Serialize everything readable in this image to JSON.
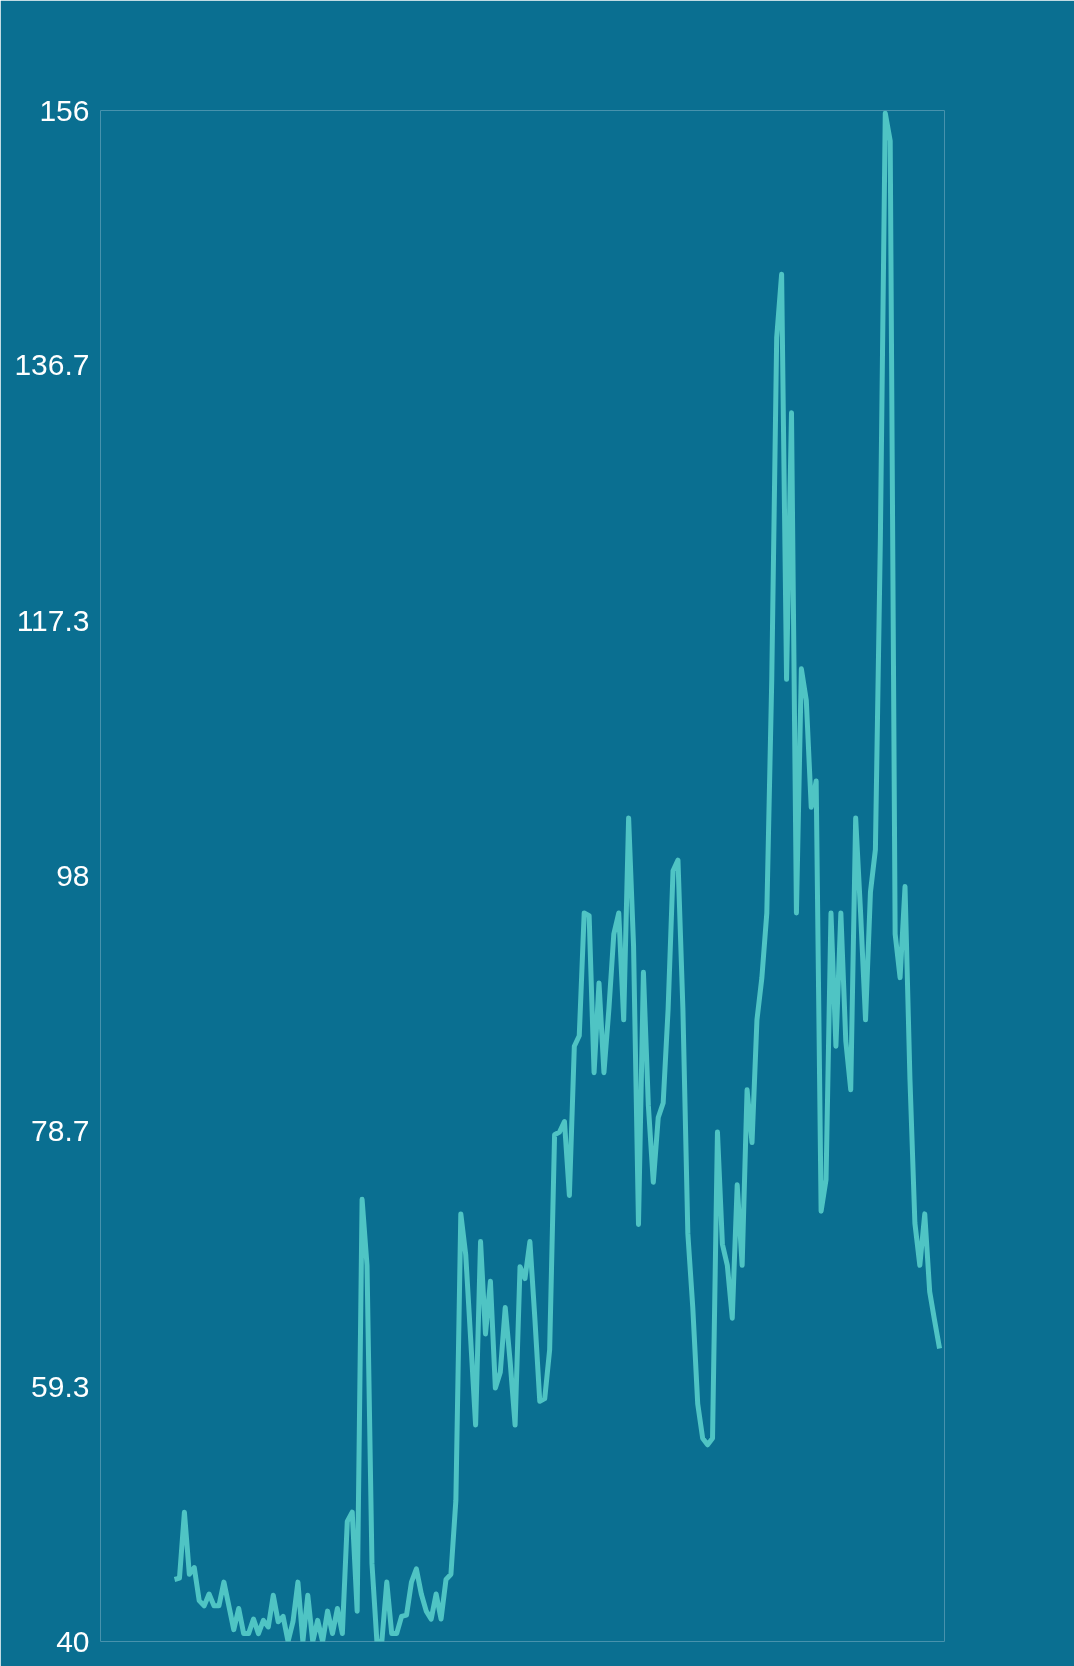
{
  "chart_data": {
    "type": "line",
    "categories": [
      null,
      null,
      null,
      null,
      null,
      null,
      null,
      null,
      null,
      null,
      null,
      null,
      null,
      null,
      null,
      null,
      null,
      null,
      null,
      null,
      null,
      null,
      null,
      null,
      null,
      null,
      null,
      null,
      null,
      null,
      null,
      null,
      null,
      null,
      null,
      null,
      null,
      null,
      null,
      null,
      null,
      null,
      null,
      null,
      null,
      null,
      null,
      null,
      null,
      null,
      null,
      null,
      null,
      null,
      null,
      null,
      null,
      null,
      null,
      null,
      null,
      null,
      null,
      null,
      null,
      null,
      null,
      null,
      null,
      null,
      null,
      null,
      null,
      null,
      null,
      null,
      null,
      null,
      null,
      null,
      null,
      null,
      null,
      null,
      null,
      null,
      null,
      null,
      null,
      null,
      null,
      null,
      null,
      null,
      null,
      null,
      null,
      null,
      null,
      null,
      null,
      null,
      null,
      null,
      null,
      null,
      null,
      null,
      null,
      null,
      null,
      null,
      null,
      null,
      null,
      null,
      null,
      null,
      null,
      null,
      null,
      null,
      null,
      null,
      null,
      null,
      null,
      null,
      null,
      null,
      null,
      null,
      null,
      null,
      null,
      null,
      null,
      null,
      null,
      null,
      null,
      null,
      null,
      null,
      null,
      null,
      null,
      null,
      null,
      null,
      null,
      null,
      null,
      null,
      null,
      null
    ],
    "series": [
      {
        "color": "#4fc4c4",
        "values": [
          44.7,
          44.8,
          49.8,
          45.1,
          45.6,
          43.1,
          42.7,
          43.6,
          42.7,
          42.7,
          44.5,
          42.7,
          40.9,
          42.5,
          40.6,
          40.6,
          41.7,
          40.6,
          41.6,
          41.1,
          43.5,
          41.5,
          41.9,
          40,
          41.5,
          44.5,
          40,
          43.5,
          40,
          41.6,
          40,
          42.3,
          40.6,
          42.5,
          40.6,
          49.1,
          49.8,
          42.3,
          73.5,
          68.5,
          45.9,
          40,
          40,
          44.5,
          40.6,
          40.6,
          41.9,
          42,
          44.5,
          45.5,
          43.6,
          42.3,
          41.7,
          43.6,
          41.7,
          44.7,
          45.1,
          50.7,
          72.4,
          69.3,
          62.9,
          56.4,
          70.3,
          63.3,
          67.3,
          59.2,
          60.4,
          65.3,
          61.2,
          56.4,
          68.4,
          67.5,
          70.3,
          64.5,
          58.2,
          58.4,
          62.1,
          78.4,
          78.6,
          79.4,
          73.8,
          85.1,
          85.9,
          95.2,
          95,
          83.1,
          89.9,
          83.1,
          87.9,
          93.6,
          95.2,
          87.1,
          102.4,
          92.7,
          71.6,
          90.7,
          80.6,
          74.8,
          79.7,
          80.8,
          87.9,
          98.4,
          99.2,
          87.9,
          70.9,
          65.3,
          58,
          55.4,
          54.9,
          55.4,
          78.6,
          70.1,
          68.5,
          64.5,
          74.6,
          68.5,
          81.8,
          77.8,
          87.1,
          90.3,
          95.2,
          112.9,
          138.8,
          143.6,
          112.9,
          133.1,
          95.2,
          113.7,
          111.3,
          103.2,
          105.2,
          72.6,
          75,
          95.2,
          85.1,
          95.2,
          85.5,
          81.8,
          102.4,
          95.2,
          87.1,
          96.8,
          100,
          123.4,
          155.8,
          153.7,
          93.6,
          90.3,
          97.2,
          82.6,
          71.7,
          68.5,
          72.4,
          66.5,
          64.3,
          62.2
        ]
      }
    ],
    "ylim": [
      40,
      156
    ],
    "yticks": [
      40,
      59.3,
      78.7,
      98,
      117.3,
      136.7,
      156
    ],
    "tick_labels": "y",
    "grid": false,
    "marker": "none",
    "line_style": "solid"
  }
}
